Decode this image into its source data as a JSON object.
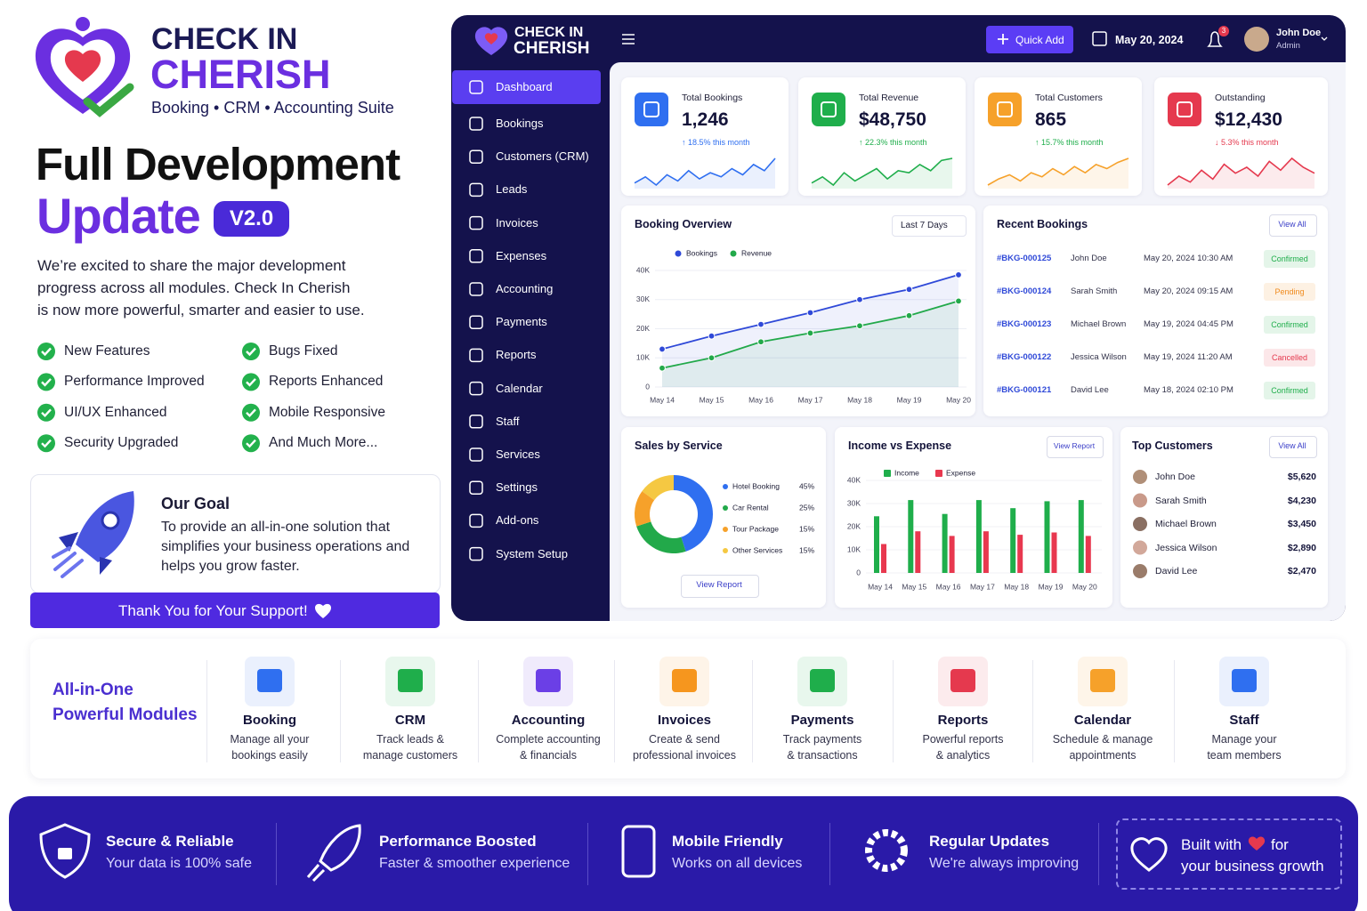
{
  "promo": {
    "brand": {
      "line1": "CHECK IN",
      "line2": "CHERISH",
      "tagline": "Booking • CRM • Accounting Suite"
    },
    "headline": {
      "line1": "Full Development",
      "line2": "Update",
      "version": "V2.0"
    },
    "intro": [
      "We’re excited to share the major development",
      "progress across all modules. Check In Cherish",
      "is now more powerful, smarter and easier to use."
    ],
    "features": [
      "New Features",
      "Bugs Fixed",
      "Performance Improved",
      "Reports Enhanced",
      "UI/UX Enhanced",
      "Mobile Responsive",
      "Security Upgraded",
      "And Much More..."
    ],
    "goal": {
      "title": "Our Goal",
      "text": [
        "To provide an all-in-one solution that",
        "simplifies your business operations and",
        "helps you grow faster."
      ]
    },
    "thanks": "Thank You for Your Support!"
  },
  "dashboard": {
    "brand": {
      "line1": "CHECK IN",
      "line2": "CHERISH"
    },
    "quick_add": "Quick Add",
    "date": "May 20, 2024",
    "notifications": 3,
    "user": {
      "name": "John Doe",
      "role": "Admin"
    },
    "nav": [
      "Dashboard",
      "Bookings",
      "Customers (CRM)",
      "Leads",
      "Invoices",
      "Expenses",
      "Accounting",
      "Payments",
      "Reports",
      "Calendar",
      "Staff",
      "Services",
      "Settings",
      "Add-ons",
      "System Setup"
    ],
    "kpis": [
      {
        "label": "Total Bookings",
        "value": "1,246",
        "change": "↑ 18.5% this month",
        "change_color": "#2f6ff0",
        "color": "#2f6ff0",
        "trend": [
          5,
          8,
          4,
          9,
          6,
          11,
          7,
          10,
          8,
          12,
          9,
          14,
          11,
          17
        ]
      },
      {
        "label": "Total Revenue",
        "value": "$48,750",
        "change": "↑ 22.3% this month",
        "change_color": "#1fae4b",
        "color": "#1fae4b",
        "trend": [
          4,
          7,
          3,
          9,
          5,
          8,
          11,
          6,
          10,
          9,
          13,
          10,
          15,
          16
        ]
      },
      {
        "label": "Total Customers",
        "value": "865",
        "change": "↑ 15.7% this month",
        "change_color": "#1fae4b",
        "color": "#f6a12a",
        "trend": [
          3,
          6,
          8,
          5,
          9,
          7,
          11,
          8,
          12,
          9,
          13,
          11,
          14,
          16
        ]
      },
      {
        "label": "Outstanding",
        "value": "$12,430",
        "change": "↓ 5.3% this month",
        "change_color": "#e5394e",
        "color": "#e5394e",
        "trend": [
          6,
          9,
          7,
          11,
          8,
          13,
          10,
          12,
          9,
          14,
          11,
          15,
          12,
          10
        ]
      }
    ],
    "booking_overview": {
      "title": "Booking Overview",
      "range": "Last 7 Days",
      "categories": [
        "May 14",
        "May 15",
        "May 16",
        "May 17",
        "May 18",
        "May 19",
        "May 20"
      ],
      "ylim": [
        0,
        40000
      ],
      "yticks": [
        0,
        {
          "value": 10000,
          "label": "10K"
        },
        {
          "value": 20000,
          "label": "20K"
        },
        {
          "value": 30000,
          "label": "30K"
        },
        {
          "value": 40000,
          "label": "40K"
        }
      ],
      "series": [
        {
          "name": "Bookings",
          "color": "#2f49d8",
          "values": [
            13000,
            17500,
            21500,
            25500,
            30000,
            33500,
            38500
          ]
        },
        {
          "name": "Revenue",
          "color": "#22a94a",
          "values": [
            6500,
            10000,
            15500,
            18500,
            21000,
            24500,
            29500
          ]
        }
      ]
    },
    "recent_bookings": {
      "title": "Recent Bookings",
      "action": "View All",
      "rows": [
        {
          "id": "#BKG-000125",
          "name": "John Doe",
          "date": "May 20, 2024 10:30 AM",
          "status": "Confirmed",
          "status_color": "#1fae4b"
        },
        {
          "id": "#BKG-000124",
          "name": "Sarah Smith",
          "date": "May 20, 2024 09:15 AM",
          "status": "Pending",
          "status_color": "#f08a1c"
        },
        {
          "id": "#BKG-000123",
          "name": "Michael Brown",
          "date": "May 19, 2024 04:45 PM",
          "status": "Confirmed",
          "status_color": "#1fae4b"
        },
        {
          "id": "#BKG-000122",
          "name": "Jessica Wilson",
          "date": "May 19, 2024 11:20 AM",
          "status": "Cancelled",
          "status_color": "#e5394e"
        },
        {
          "id": "#BKG-000121",
          "name": "David Lee",
          "date": "May 18, 2024 02:10 PM",
          "status": "Confirmed",
          "status_color": "#1fae4b"
        }
      ]
    },
    "sales_by_service": {
      "title": "Sales by Service",
      "categories": [
        "Hotel Booking",
        "Car Rental",
        "Tour Package",
        "Other Services"
      ],
      "values": [
        45,
        25,
        15,
        15
      ],
      "value_labels": [
        "45%",
        "25%",
        "15%",
        "15%"
      ],
      "colors": [
        "#2f6ff0",
        "#22a94a",
        "#f6a12a",
        "#f5c842"
      ],
      "action": "View Report"
    },
    "income_vs_expense": {
      "title": "Income vs Expense",
      "action": "View Report",
      "categories": [
        "May 14",
        "May 15",
        "May 16",
        "May 17",
        "May 18",
        "May 19",
        "May 20"
      ],
      "ylim": [
        0,
        40000
      ],
      "yticks": [
        0,
        {
          "value": 10000,
          "label": "10K"
        },
        {
          "value": 20000,
          "label": "20K"
        },
        {
          "value": 30000,
          "label": "30K"
        },
        {
          "value": 40000,
          "label": "40K"
        }
      ],
      "series": [
        {
          "name": "Income",
          "color": "#1fae4b",
          "values": [
            24500,
            31500,
            25500,
            31500,
            28000,
            31000,
            31500
          ]
        },
        {
          "name": "Expense",
          "color": "#e8384f",
          "values": [
            12500,
            18000,
            16000,
            18000,
            16500,
            17500,
            16000
          ]
        }
      ]
    },
    "top_customers": {
      "title": "Top Customers",
      "action": "View All",
      "rows": [
        {
          "name": "John Doe",
          "amount": "$5,620"
        },
        {
          "name": "Sarah Smith",
          "amount": "$4,230"
        },
        {
          "name": "Michael Brown",
          "amount": "$3,450"
        },
        {
          "name": "Jessica Wilson",
          "amount": "$2,890"
        },
        {
          "name": "David Lee",
          "amount": "$2,470"
        }
      ]
    }
  },
  "modules": {
    "title": [
      "All-in-One",
      "Powerful Modules"
    ],
    "items": [
      {
        "name": "Booking",
        "desc": [
          "Manage all your",
          "bookings easily"
        ],
        "color": "#2f6ff0"
      },
      {
        "name": "CRM",
        "desc": [
          "Track leads &",
          "manage customers"
        ],
        "color": "#1fae4b"
      },
      {
        "name": "Accounting",
        "desc": [
          "Complete accounting",
          "& financials"
        ],
        "color": "#6b3fe6"
      },
      {
        "name": "Invoices",
        "desc": [
          "Create & send",
          "professional invoices"
        ],
        "color": "#f6961e"
      },
      {
        "name": "Payments",
        "desc": [
          "Track payments",
          "& transactions"
        ],
        "color": "#1fae4b"
      },
      {
        "name": "Reports",
        "desc": [
          "Powerful reports",
          "& analytics"
        ],
        "color": "#e5394e"
      },
      {
        "name": "Calendar",
        "desc": [
          "Schedule & manage",
          "appointments"
        ],
        "color": "#f6a12a"
      },
      {
        "name": "Staff",
        "desc": [
          "Manage your",
          "team members"
        ],
        "color": "#2f6ff0"
      }
    ]
  },
  "footer": {
    "items": [
      {
        "title": "Secure & Reliable",
        "text": "Your data is 100% safe"
      },
      {
        "title": "Performance Boosted",
        "text": "Faster & smoother experience"
      },
      {
        "title": "Mobile Friendly",
        "text": "Works on all devices"
      },
      {
        "title": "Regular Updates",
        "text": "We're always improving"
      }
    ],
    "built": {
      "line1": "Built with",
      "line2": "for",
      "line3": "your business growth"
    }
  }
}
